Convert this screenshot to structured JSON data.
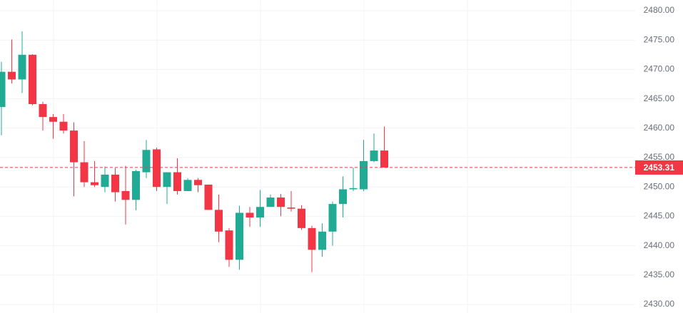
{
  "chart_data": {
    "type": "candlestick",
    "open": [
      2463.6,
      2469.6,
      2468.3,
      2472.5,
      2464.1,
      2461.9,
      2461.1,
      2459.6,
      2454.2,
      2450.8,
      2450.0,
      2452.1,
      2449.3,
      2447.8,
      2452.5,
      2456.4,
      2450.0,
      2452.5,
      2449.3,
      2451.2,
      2450.4,
      2446.1,
      2442.6,
      2437.6,
      2445.6,
      2444.8,
      2446.6,
      2448.2,
      2446.5,
      2446.3,
      2443.0,
      2439.3,
      2442.4,
      2447.1,
      2449.6,
      2449.6,
      2454.4,
      2456.2
    ],
    "high": [
      2471.3,
      2475.1,
      2476.5,
      2472.6,
      2464.5,
      2462.4,
      2462.4,
      2461.0,
      2457.8,
      2454.4,
      2453.5,
      2453.2,
      2453.6,
      2452.9,
      2458.0,
      2456.7,
      2452.5,
      2454.9,
      2451.5,
      2451.5,
      2450.4,
      2448.7,
      2443.0,
      2446.8,
      2446.6,
      2449.5,
      2448.7,
      2448.8,
      2449.3,
      2446.9,
      2443.4,
      2443.8,
      2447.5,
      2451.8,
      2453.3,
      2458.0,
      2459.1,
      2460.3
    ],
    "low": [
      2458.8,
      2467.6,
      2466.0,
      2463.9,
      2459.6,
      2458.2,
      2459.1,
      2448.4,
      2450.0,
      2450.0,
      2449.1,
      2447.5,
      2443.6,
      2446.0,
      2451.5,
      2449.3,
      2447.1,
      2448.7,
      2449.3,
      2449.1,
      2446.1,
      2440.6,
      2436.4,
      2435.9,
      2443.2,
      2443.2,
      2446.6,
      2445.0,
      2445.8,
      2442.7,
      2435.5,
      2438.1,
      2440.0,
      2444.8,
      2449.3,
      2449.3,
      2454.2,
      2453.3
    ],
    "close": [
      2469.6,
      2468.3,
      2472.5,
      2464.1,
      2461.9,
      2461.1,
      2459.6,
      2454.2,
      2450.8,
      2450.3,
      2452.1,
      2449.1,
      2447.8,
      2452.7,
      2456.3,
      2450.0,
      2452.5,
      2449.3,
      2451.2,
      2450.3,
      2446.1,
      2442.4,
      2437.6,
      2445.6,
      2444.8,
      2446.6,
      2448.2,
      2446.6,
      2446.3,
      2443.0,
      2439.3,
      2442.4,
      2447.1,
      2449.6,
      2449.8,
      2454.4,
      2456.2,
      2453.31
    ],
    "up_color": "#22ab94",
    "down_color": "#f23645",
    "last_price": {
      "value": 2453.31,
      "label": "2453.31"
    },
    "ylim": [
      2430,
      2480
    ],
    "yticks": [
      {
        "value": 2430,
        "label": "2430.00"
      },
      {
        "value": 2435,
        "label": "2435.00"
      },
      {
        "value": 2440,
        "label": "2440.00"
      },
      {
        "value": 2445,
        "label": "2445.00"
      },
      {
        "value": 2450,
        "label": "2450.00"
      },
      {
        "value": 2455,
        "label": "2455.00"
      },
      {
        "value": 2460,
        "label": "2460.00"
      },
      {
        "value": 2465,
        "label": "2465.00"
      },
      {
        "value": 2470,
        "label": "2470.00"
      },
      {
        "value": 2475,
        "label": "2475.00"
      },
      {
        "value": 2480,
        "label": "2480.00"
      }
    ],
    "grid": true
  }
}
